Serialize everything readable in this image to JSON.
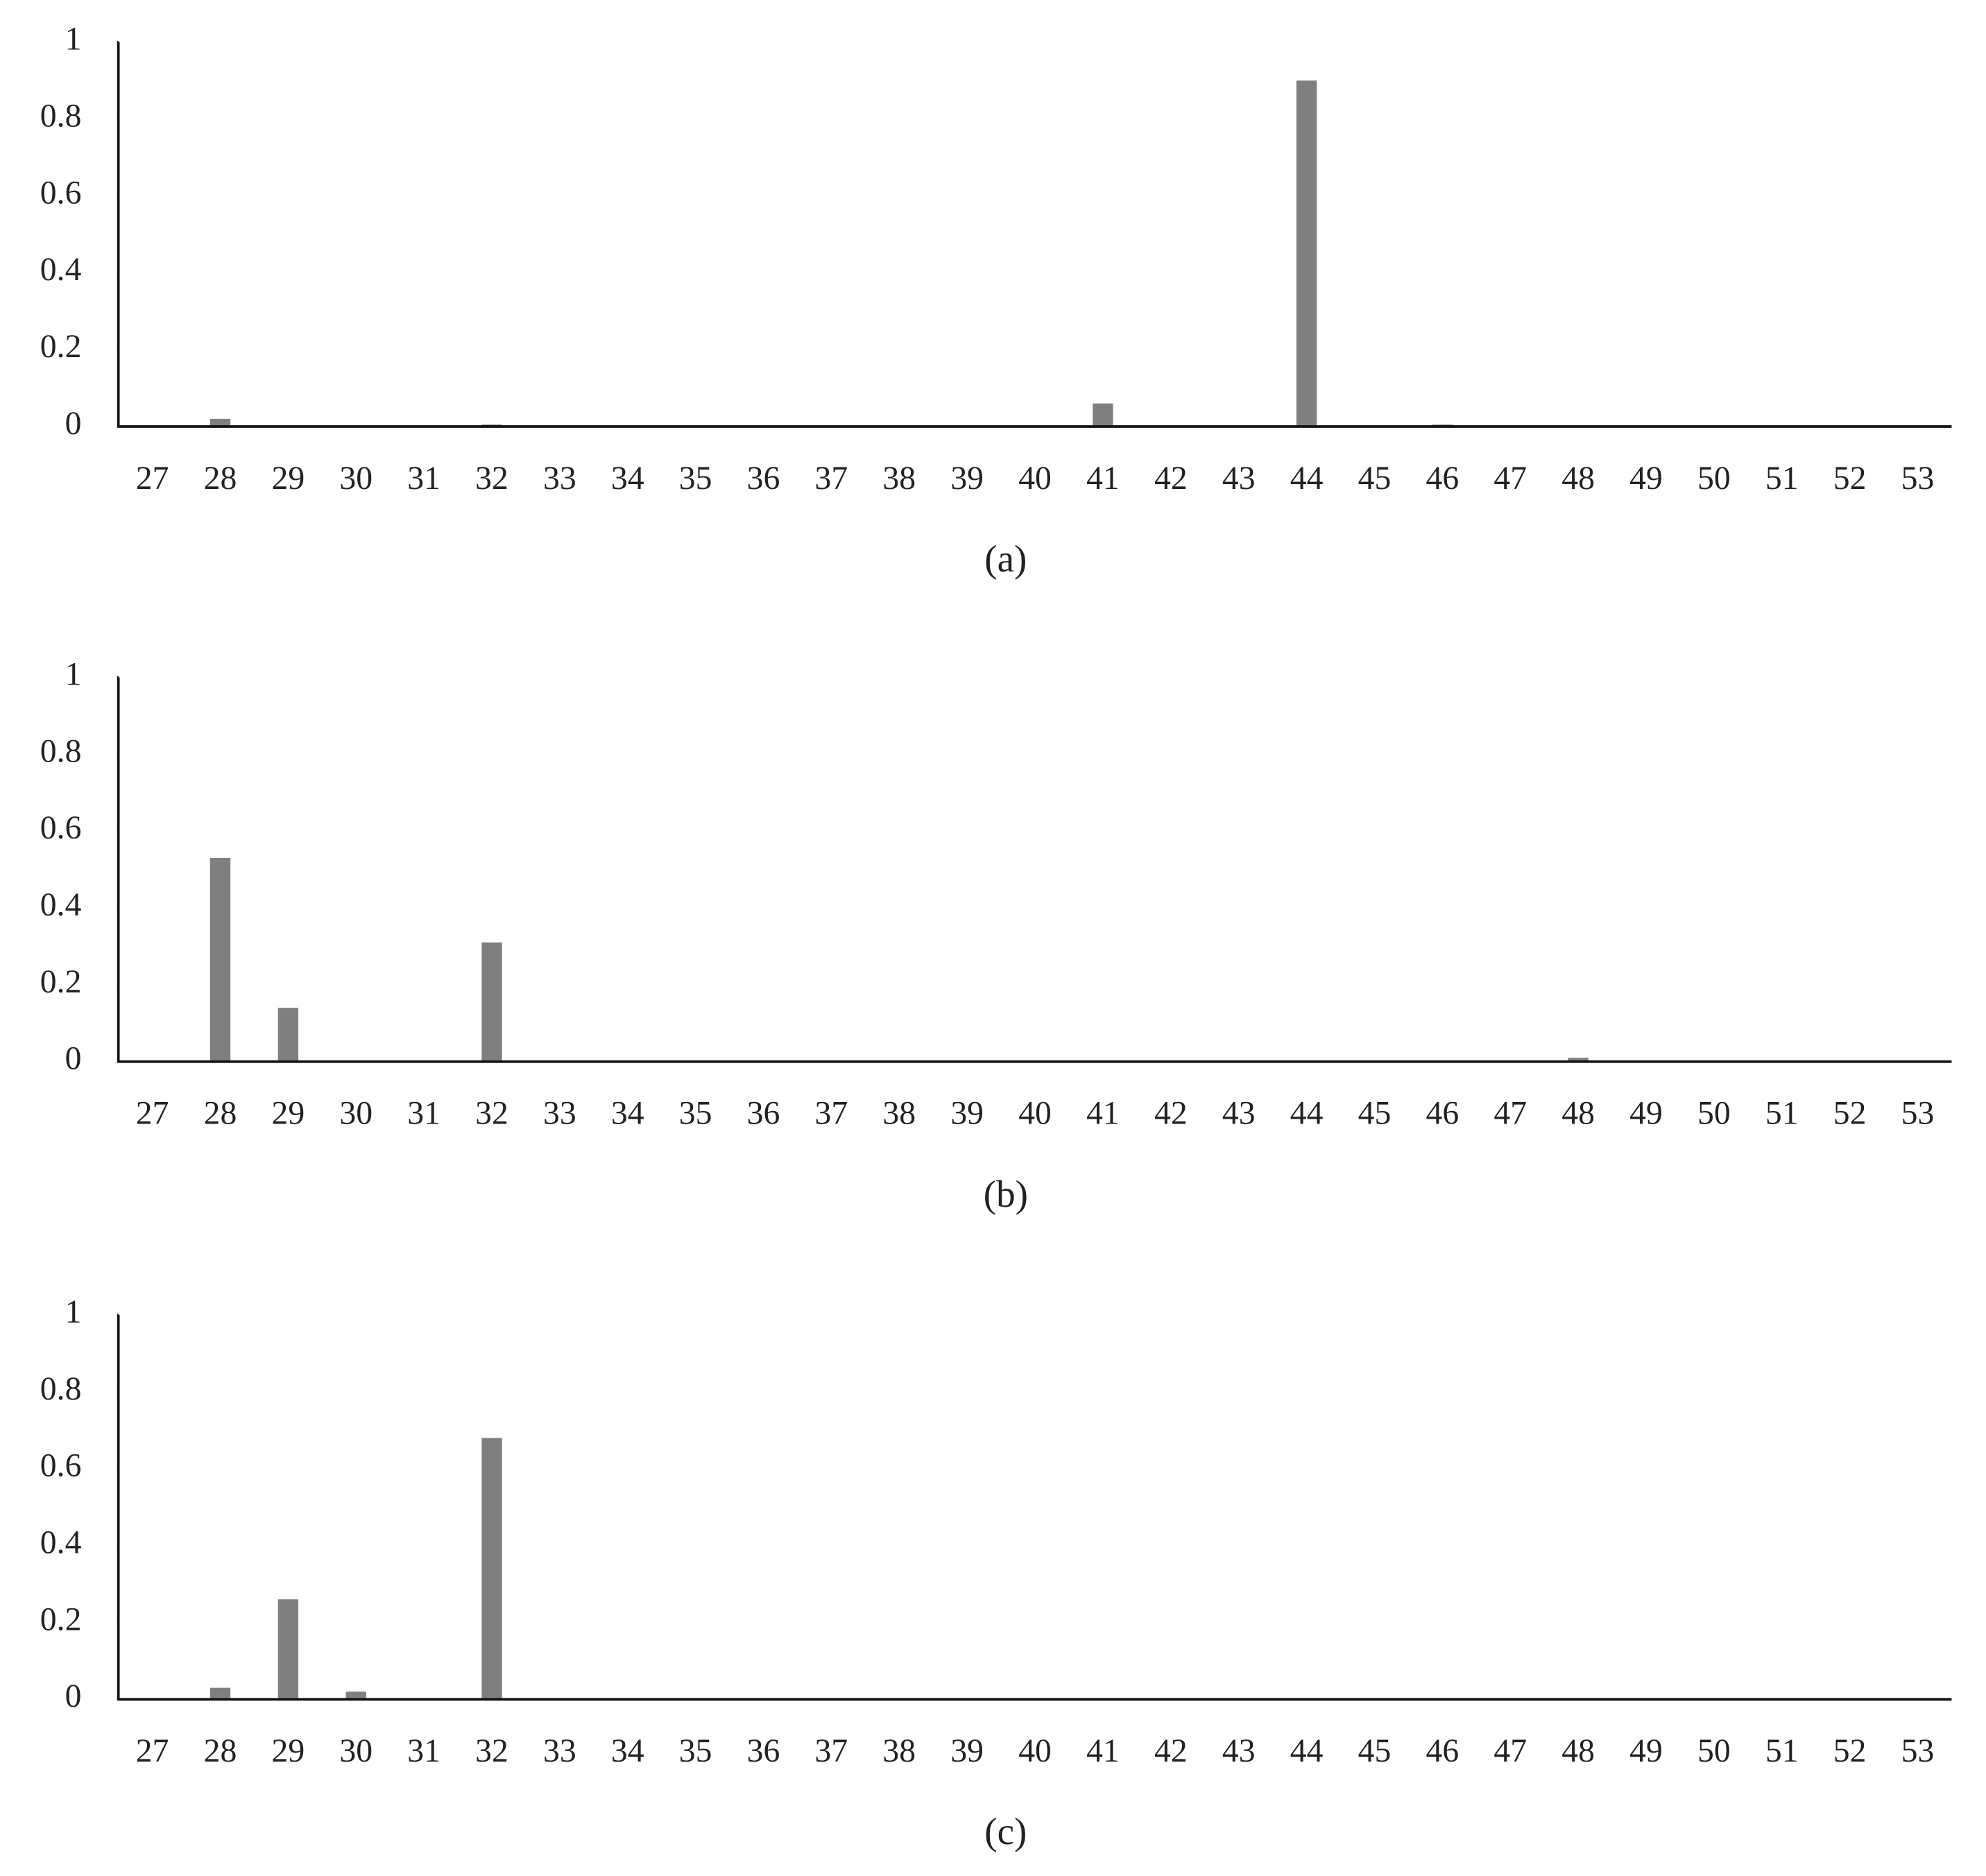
{
  "chart_data": [
    {
      "type": "bar",
      "title": "(a)",
      "categories": [
        "27",
        "28",
        "29",
        "30",
        "31",
        "32",
        "33",
        "34",
        "35",
        "36",
        "37",
        "38",
        "39",
        "40",
        "41",
        "42",
        "43",
        "44",
        "45",
        "46",
        "47",
        "48",
        "49",
        "50",
        "51",
        "52",
        "53"
      ],
      "values": [
        0,
        0.02,
        0.002,
        0,
        0,
        0.005,
        0,
        0,
        0,
        0,
        0,
        0,
        0,
        0,
        0.06,
        0,
        0,
        0.9,
        0,
        0.005,
        0,
        0,
        0,
        0,
        0,
        0,
        0
      ],
      "color": "#7f7f7f",
      "ylim": [
        0,
        1
      ],
      "yticks": [
        0,
        0.2,
        0.4,
        0.6,
        0.8,
        1
      ],
      "grid": false
    },
    {
      "type": "bar",
      "title": "(b)",
      "categories": [
        "27",
        "28",
        "29",
        "30",
        "31",
        "32",
        "33",
        "34",
        "35",
        "36",
        "37",
        "38",
        "39",
        "40",
        "41",
        "42",
        "43",
        "44",
        "45",
        "46",
        "47",
        "48",
        "49",
        "50",
        "51",
        "52",
        "53"
      ],
      "values": [
        0,
        0.53,
        0.14,
        0,
        0,
        0.31,
        0,
        0,
        0,
        0,
        0,
        0,
        0,
        0,
        0,
        0,
        0,
        0,
        0,
        0,
        0,
        0.01,
        0,
        0,
        0,
        0,
        0
      ],
      "color": "#7f7f7f",
      "ylim": [
        0,
        1
      ],
      "yticks": [
        0,
        0.2,
        0.4,
        0.6,
        0.8,
        1
      ],
      "grid": false
    },
    {
      "type": "bar",
      "title": "(c)",
      "categories": [
        "27",
        "28",
        "29",
        "30",
        "31",
        "32",
        "33",
        "34",
        "35",
        "36",
        "37",
        "38",
        "39",
        "40",
        "41",
        "42",
        "43",
        "44",
        "45",
        "46",
        "47",
        "48",
        "49",
        "50",
        "51",
        "52",
        "53"
      ],
      "values": [
        0,
        0.03,
        0.26,
        0.02,
        0,
        0.68,
        0,
        0,
        0,
        0,
        0,
        0,
        0,
        0,
        0,
        0,
        0,
        0,
        0,
        0,
        0,
        0.002,
        0,
        0,
        0,
        0,
        0
      ],
      "color": "#7f7f7f",
      "ylim": [
        0,
        1
      ],
      "yticks": [
        0,
        0.2,
        0.4,
        0.6,
        0.8,
        1
      ],
      "grid": false
    }
  ]
}
